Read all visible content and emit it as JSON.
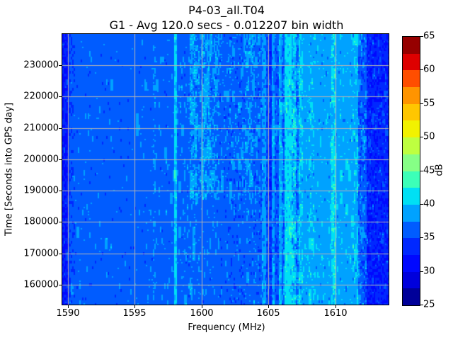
{
  "chart_data": {
    "type": "heatmap",
    "title": "P4-03_all.T04",
    "subtitle": "G1 - Avg 120.0 secs - 0.012207 bin width",
    "xlabel": "Frequency (MHz)",
    "ylabel": "Time [Seconds into GPS day]",
    "x_range": [
      1589.58,
      1613.97
    ],
    "y_range": [
      153672,
      240000
    ],
    "x_ticks": [
      1590,
      1595,
      1600,
      1605,
      1610
    ],
    "y_ticks": [
      160000,
      170000,
      180000,
      190000,
      200000,
      210000,
      220000,
      230000
    ],
    "grid": true,
    "grid_color": "#b4b4b4",
    "legend_position": "right-colorbar",
    "colorbar": {
      "label": "dB",
      "min": 25,
      "max": 65,
      "ticks": [
        25,
        30,
        35,
        40,
        45,
        50,
        55,
        60,
        65
      ],
      "n_levels": 16,
      "palette": [
        "#000099",
        "#0000DC",
        "#0008FF",
        "#0028FF",
        "#005CFF",
        "#00A2FF",
        "#00E0F4",
        "#3CFFB8",
        "#86FF86",
        "#BEFF40",
        "#F2F200",
        "#FFC600",
        "#FF9400",
        "#FF4E00",
        "#DE0000",
        "#960000"
      ]
    },
    "value_note": "frequency bands: [f_start_MHz, f_end_MHz, base_level_index_into_palette, p_brighter_speckle, p_darker_speckle, time_modulated]",
    "bands": [
      [
        1589.4,
        1590.12,
        3,
        0.05,
        0.5,
        0
      ],
      [
        1590.12,
        1590.55,
        4,
        0.01,
        0.22,
        0
      ],
      [
        1590.55,
        1596.3,
        4,
        0.012,
        0.012,
        0
      ],
      [
        1596.3,
        1596.6,
        4,
        0.15,
        0.01,
        0
      ],
      [
        1596.6,
        1597.9,
        4,
        0.02,
        0.01,
        0
      ],
      [
        1597.9,
        1598.12,
        6,
        0.02,
        0.3,
        0
      ],
      [
        1598.12,
        1599.15,
        4,
        0.05,
        0.02,
        0
      ],
      [
        1599.15,
        1599.65,
        4,
        0.45,
        0.01,
        1
      ],
      [
        1599.65,
        1600.1,
        4,
        0.25,
        0.01,
        1
      ],
      [
        1600.1,
        1600.65,
        4,
        0.38,
        0.01,
        1
      ],
      [
        1600.65,
        1601.3,
        4,
        0.22,
        0.01,
        1
      ],
      [
        1601.3,
        1602.1,
        4,
        0.1,
        0.06,
        1
      ],
      [
        1602.1,
        1603.2,
        4,
        0.14,
        0.1,
        1
      ],
      [
        1603.2,
        1603.9,
        4,
        0.3,
        0.02,
        1
      ],
      [
        1603.9,
        1604.5,
        4,
        0.12,
        0.15,
        0
      ],
      [
        1604.5,
        1604.8,
        5,
        0.02,
        0.3,
        0
      ],
      [
        1604.8,
        1605.0,
        4,
        0.02,
        0.35,
        0
      ],
      [
        1605.0,
        1605.25,
        3,
        0.1,
        0.2,
        0
      ],
      [
        1605.25,
        1605.5,
        5,
        0.03,
        0.25,
        0
      ],
      [
        1605.5,
        1605.75,
        4,
        0.05,
        0.3,
        0
      ],
      [
        1605.75,
        1606.0,
        5,
        0.15,
        0.1,
        0
      ],
      [
        1606.0,
        1606.2,
        4,
        0.2,
        0.2,
        0
      ],
      [
        1606.2,
        1606.7,
        6,
        0.03,
        0.15,
        0
      ],
      [
        1606.7,
        1607.0,
        5,
        0.35,
        0.2,
        0
      ],
      [
        1607.0,
        1607.25,
        4,
        0.3,
        0.25,
        0
      ],
      [
        1607.25,
        1607.55,
        5,
        0.25,
        0.05,
        0
      ],
      [
        1607.55,
        1608.0,
        5,
        0.06,
        0.02,
        0
      ],
      [
        1608.0,
        1608.4,
        5,
        0.15,
        0.02,
        0
      ],
      [
        1608.4,
        1609.65,
        5,
        0.05,
        0.02,
        0
      ],
      [
        1609.65,
        1609.95,
        5,
        0.45,
        0.01,
        0
      ],
      [
        1609.95,
        1611.3,
        5,
        0.05,
        0.02,
        0
      ],
      [
        1611.3,
        1611.65,
        5,
        0.12,
        0.02,
        0
      ],
      [
        1611.65,
        1612.35,
        4,
        0.15,
        0.25,
        0
      ],
      [
        1612.35,
        1614.1,
        3,
        0.08,
        0.4,
        0
      ]
    ],
    "cloud_time_threshold": 187000,
    "seed": 7
  }
}
